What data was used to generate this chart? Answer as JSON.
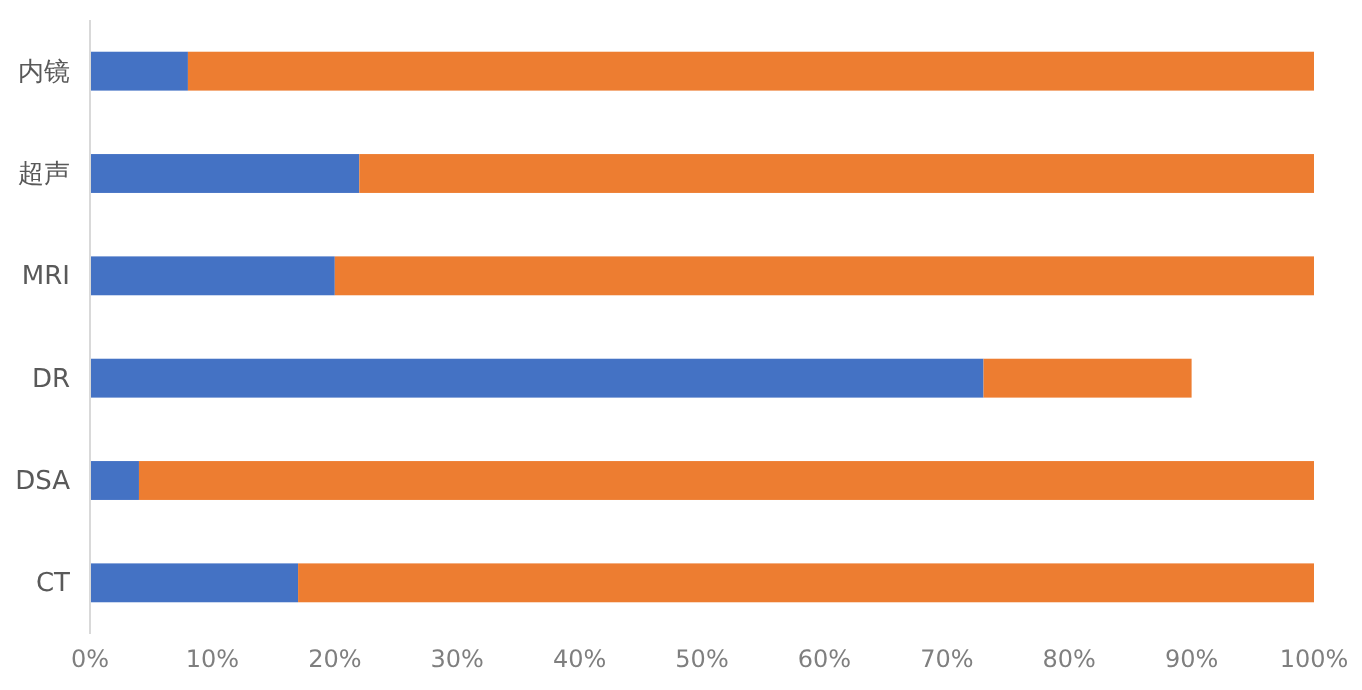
{
  "chart_data": {
    "type": "bar",
    "orientation": "horizontal",
    "stacked": true,
    "categories": [
      "内镜",
      "超声",
      "MRI",
      "DR",
      "DSA",
      "CT"
    ],
    "series": [
      {
        "color": "#4472c4",
        "values": [
          8,
          22,
          20,
          73,
          4,
          17
        ]
      },
      {
        "color": "#ed7d31",
        "values": [
          92,
          78,
          80,
          17,
          96,
          83
        ]
      }
    ],
    "xlim": [
      0,
      100
    ],
    "xticks": [
      {
        "value": 0,
        "label": "0%"
      },
      {
        "value": 10,
        "label": "10%"
      },
      {
        "value": 20,
        "label": "20%"
      },
      {
        "value": 30,
        "label": "30%"
      },
      {
        "value": 40,
        "label": "40%"
      },
      {
        "value": 50,
        "label": "50%"
      },
      {
        "value": 60,
        "label": "60%"
      },
      {
        "value": 70,
        "label": "70%"
      },
      {
        "value": 80,
        "label": "80%"
      },
      {
        "value": 90,
        "label": "90%"
      },
      {
        "value": 100,
        "label": "100%"
      }
    ],
    "grid": false,
    "legend": false
  }
}
